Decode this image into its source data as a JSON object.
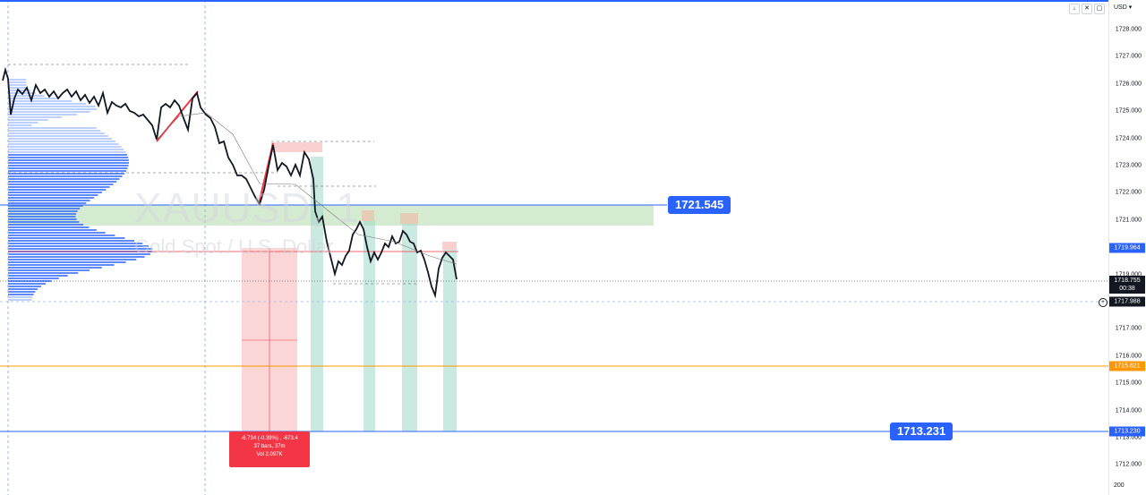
{
  "chart": {
    "symbol_watermark": "XAUUSD, 1",
    "description_watermark": "Gold Spot / U.S. Dollar",
    "currency": "USD",
    "colors": {
      "candle": "#131722",
      "volume_profile": "#2962ff",
      "zone_green": "#b9ddb2",
      "zone_red": "#f8c4c4",
      "blue_line": "#2962ff",
      "orange_line": "#ff9800",
      "red_line": "#f23645",
      "teal_bars": "#9fd8c9",
      "label_blue": "#2962ff"
    }
  },
  "price_axis": {
    "ticks": [
      "1728.000",
      "1727.000",
      "1726.000",
      "1725.000",
      "1724.000",
      "1723.000",
      "1722.000",
      "1721.000",
      "1720.000",
      "1719.000",
      "1717.000",
      "1716.000",
      "1715.000",
      "1714.000",
      "1713.000",
      "1712.000"
    ],
    "tags": {
      "price_1719964": "1719.964",
      "last_price": "1718.755",
      "countdown": "00:38",
      "crosshair_price": "1717.988",
      "orange_price": "1715.621",
      "blue_low_price": "1713.230"
    },
    "bottom_value": "200"
  },
  "labels": {
    "upper_level": "1721.545",
    "lower_level": "1713.231"
  },
  "measure": {
    "line1": "-6.734 (-0.39%) , -673.4",
    "line2": "37 bars, 37m",
    "line3": "Vol 2.097K"
  },
  "toolbar": {
    "btn1": "↓",
    "btn2": "✕",
    "btn3": "▢"
  }
}
